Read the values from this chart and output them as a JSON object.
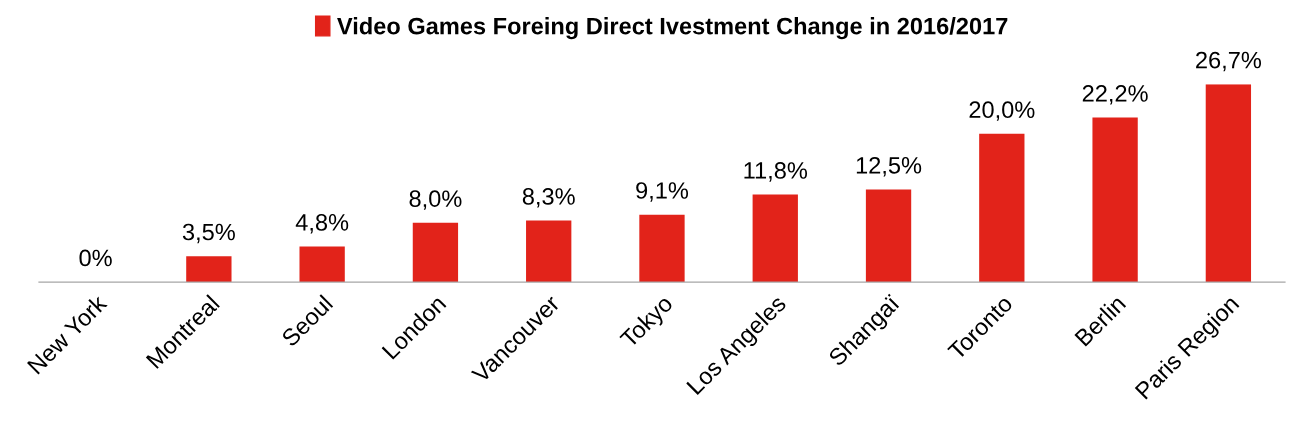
{
  "chart_data": {
    "type": "bar",
    "categories": [
      "New York",
      "Montreal",
      "Seoul",
      "London",
      "Vancouver",
      "Tokyo",
      "Los Angeles",
      "Shangaï",
      "Toronto",
      "Berlin",
      "Paris Region"
    ],
    "series": [
      {
        "name": "Video Games Foreing Direct Ivestment Change in 2016/2017",
        "color": "#e2231a",
        "values": [
          0,
          3.5,
          4.8,
          8.0,
          8.3,
          9.1,
          11.8,
          12.5,
          20.0,
          22.2,
          26.7
        ],
        "value_labels": [
          "0%",
          "3,5%",
          "4,8%",
          "8,0%",
          "8,3%",
          "9,1%",
          "11,8%",
          "12,5%",
          "20,0%",
          "22,2%",
          "26,7%"
        ]
      }
    ],
    "legend": "top",
    "grid": false
  }
}
